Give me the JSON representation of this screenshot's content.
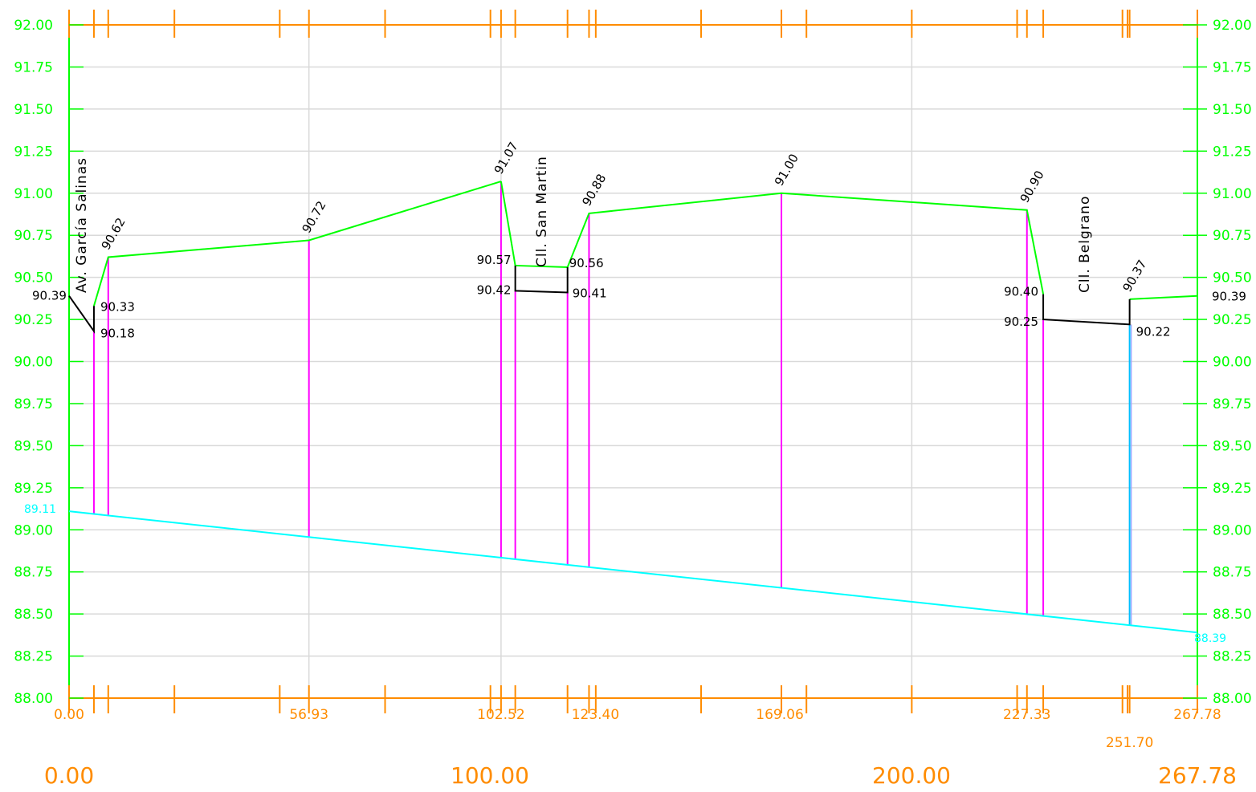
{
  "chart_data": {
    "type": "line",
    "xlim": [
      0,
      267.78
    ],
    "ylim": [
      88.0,
      92.0
    ],
    "grid": true,
    "y_tick_labels": [
      "88.00",
      "88.25",
      "88.50",
      "88.75",
      "89.00",
      "89.25",
      "89.50",
      "89.75",
      "90.00",
      "90.25",
      "90.50",
      "90.75",
      "91.00",
      "91.25",
      "91.50",
      "91.75",
      "92.00"
    ],
    "station_labels": [
      "0.00",
      "56.93",
      "102.52",
      "123.40",
      "169.06",
      "227.33",
      "251.70",
      "267.78"
    ],
    "big_scale_labels": [
      "0.00",
      "100.00",
      "200.00",
      "267.78"
    ],
    "series": [
      {
        "color": "#00ff00",
        "x": [
          102.52,
          105.9,
          118.3,
          123.4,
          169.06,
          227.33,
          231.2
        ],
        "y": [
          91.07,
          90.57,
          90.56,
          90.88,
          91.0,
          90.9,
          90.4
        ]
      },
      {
        "color": "#00ff00",
        "x": [
          5.9,
          9.3,
          56.93,
          102.52
        ],
        "y": [
          90.33,
          90.62,
          90.72,
          91.07
        ]
      },
      {
        "color": "#00ff00",
        "x": [
          251.7,
          267.78
        ],
        "y": [
          90.37,
          90.39
        ]
      },
      {
        "color": "#000000",
        "x": [
          0.0,
          5.9,
          5.9
        ],
        "y": [
          90.39,
          90.18,
          90.33
        ]
      },
      {
        "color": "#000000",
        "x": [
          105.9,
          105.9,
          118.3,
          118.3
        ],
        "y": [
          90.57,
          90.42,
          90.41,
          90.56
        ]
      },
      {
        "color": "#000000",
        "x": [
          231.2,
          231.2,
          251.7,
          251.7
        ],
        "y": [
          90.4,
          90.25,
          90.22,
          90.37
        ]
      },
      {
        "color": "#00ffff",
        "x": [
          0.0,
          267.78
        ],
        "y": [
          89.11,
          88.39
        ]
      }
    ],
    "annotations": [
      {
        "text": "90.39",
        "x": 0.0,
        "y": 90.39
      },
      {
        "text": "90.33",
        "x": 5.9,
        "y": 90.33
      },
      {
        "text": "90.18",
        "x": 5.9,
        "y": 90.18
      },
      {
        "text": "90.62",
        "x": 9.3,
        "y": 90.62
      },
      {
        "text": "90.72",
        "x": 56.93,
        "y": 90.72
      },
      {
        "text": "91.07",
        "x": 102.52,
        "y": 91.07
      },
      {
        "text": "90.57",
        "x": 105.9,
        "y": 90.57
      },
      {
        "text": "90.42",
        "x": 105.9,
        "y": 90.42
      },
      {
        "text": "90.56",
        "x": 118.3,
        "y": 90.56
      },
      {
        "text": "90.41",
        "x": 118.3,
        "y": 90.41
      },
      {
        "text": "90.88",
        "x": 123.4,
        "y": 90.88
      },
      {
        "text": "91.00",
        "x": 169.06,
        "y": 91.0
      },
      {
        "text": "90.90",
        "x": 227.33,
        "y": 90.9
      },
      {
        "text": "90.40",
        "x": 231.2,
        "y": 90.4
      },
      {
        "text": "90.25",
        "x": 231.2,
        "y": 90.25
      },
      {
        "text": "90.37",
        "x": 251.7,
        "y": 90.37
      },
      {
        "text": "90.22",
        "x": 251.7,
        "y": 90.22
      },
      {
        "text": "90.39",
        "x": 267.78,
        "y": 90.39
      },
      {
        "text": "89.11",
        "x": 0.0,
        "y": 89.11
      },
      {
        "text": "88.39",
        "x": 267.78,
        "y": 88.39
      }
    ],
    "street_labels": [
      "Av. García Salinas",
      "Cll. San Martin",
      "Cll. Belgrano"
    ]
  }
}
